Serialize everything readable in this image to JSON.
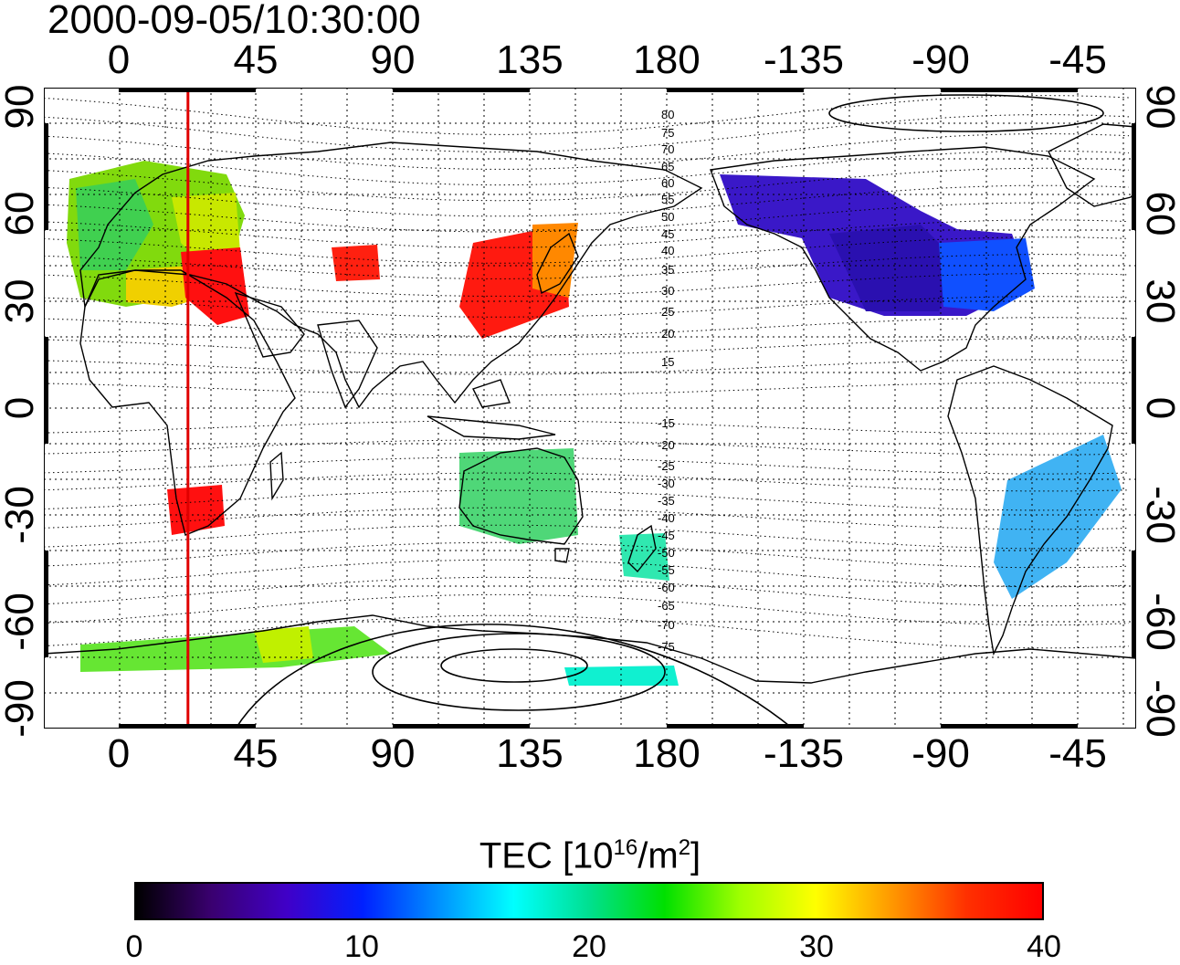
{
  "header": {
    "timestamp": "2000-09-05/10:30:00"
  },
  "map": {
    "x_ticks": [
      "0",
      "45",
      "90",
      "135",
      "180",
      "-135",
      "-90",
      "-45"
    ],
    "y_ticks": [
      "90",
      "60",
      "30",
      "0",
      "-30",
      "-60",
      "-90"
    ],
    "contour_labels_north": [
      "80",
      "75",
      "70",
      "65",
      "60",
      "55",
      "50",
      "45",
      "40",
      "35",
      "30",
      "25",
      "20",
      "15"
    ],
    "contour_labels_south": [
      "-15",
      "-20",
      "-25",
      "-30",
      "-35",
      "-40",
      "-45",
      "-50",
      "-55",
      "-60",
      "-65",
      "-70",
      "-75"
    ],
    "marker_longitude": 22.5,
    "marker_color": "#e00000",
    "projection": "equirectangular"
  },
  "colorbar": {
    "title_main": "TEC  [10",
    "title_sup1": "16",
    "title_mid": "/m",
    "title_sup2": "2",
    "title_end": "]",
    "ticks": [
      "0",
      "10",
      "20",
      "30",
      "40"
    ],
    "range": [
      0,
      40
    ],
    "colormap": [
      "#000000",
      "#3a0070",
      "#4000c8",
      "#0020ff",
      "#0090ff",
      "#00ffff",
      "#00e090",
      "#00e000",
      "#a0ff00",
      "#ffff00",
      "#ff9900",
      "#ff3000",
      "#ff0000"
    ]
  }
}
